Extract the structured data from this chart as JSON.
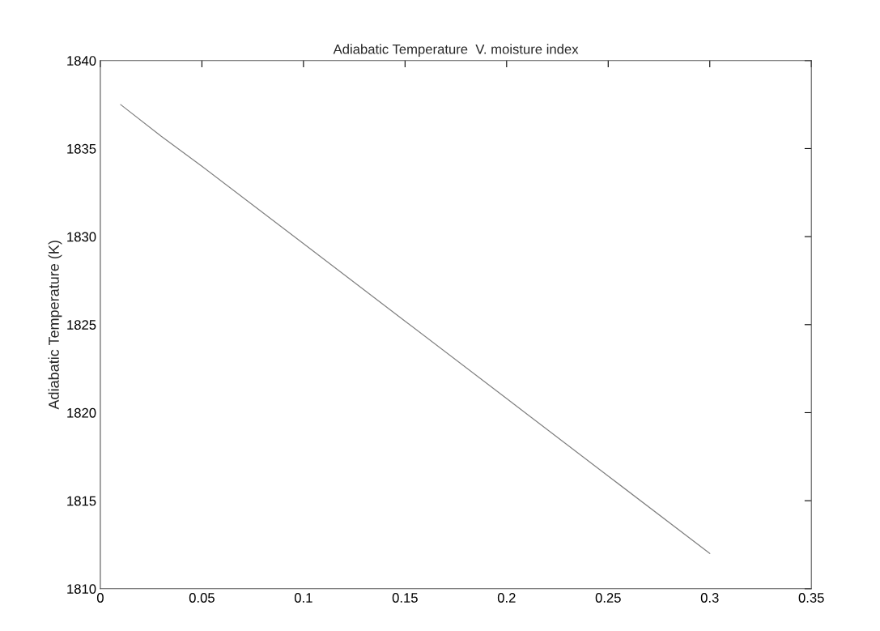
{
  "chart_data": {
    "type": "line",
    "title": "Adiabatic Temperature  V. moisture index",
    "ylabel": "Adiabatic Temperature (K)",
    "x": [
      0.01,
      0.03,
      0.05,
      0.1,
      0.15,
      0.2,
      0.25,
      0.3
    ],
    "series": [
      {
        "color": "#808080",
        "values": [
          1837.5,
          1835.7,
          1834.0,
          1829.6,
          1825.2,
          1820.8,
          1816.4,
          1812.0
        ]
      }
    ],
    "xlim": [
      0,
      0.35
    ],
    "xticks": [
      0,
      0.05,
      0.1,
      0.15,
      0.2,
      0.25,
      0.3,
      0.35
    ],
    "ylim": [
      1810,
      1840
    ],
    "yticks": [
      1810,
      1815,
      1820,
      1825,
      1830,
      1835,
      1840
    ],
    "grid": false,
    "legend": false,
    "marker": "none",
    "line_style": "solid"
  }
}
